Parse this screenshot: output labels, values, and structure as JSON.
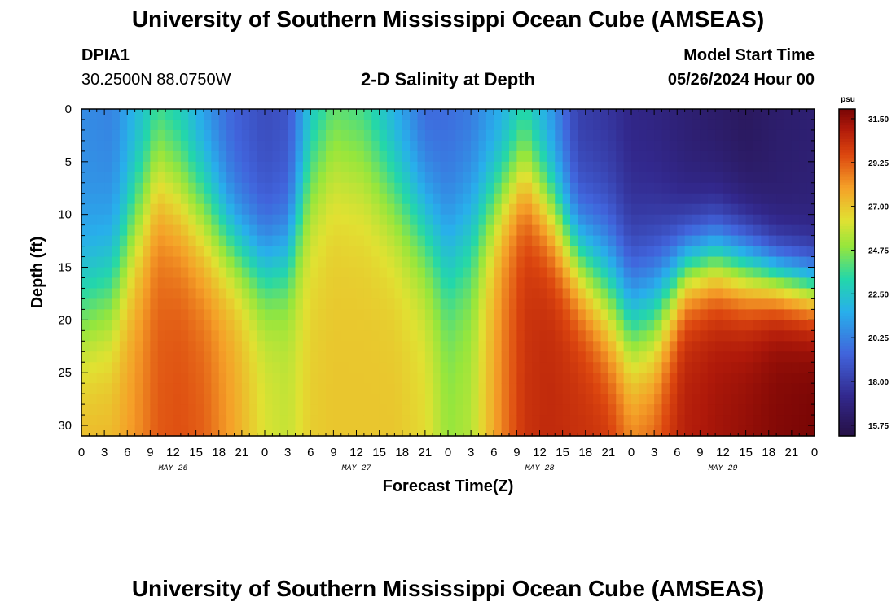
{
  "chart_data": {
    "type": "heatmap",
    "title": "University of Southern Mississippi Ocean Cube (AMSEAS)",
    "title_repeat": "University of Southern Mississippi Ocean Cube (AMSEAS)",
    "station": "DPIA1",
    "coords": "30.2500N  88.0750W",
    "subtitle": "2-D Salinity at Depth",
    "model_start_label": "Model Start Time",
    "model_start": "05/26/2024 Hour 00",
    "xlabel": "Forecast Time(Z)",
    "ylabel": "Depth (ft)",
    "x_ticks": [
      "0",
      "3",
      "6",
      "9",
      "12",
      "15",
      "18",
      "21",
      "0",
      "3",
      "6",
      "9",
      "12",
      "15",
      "18",
      "21",
      "0",
      "3",
      "6",
      "9",
      "12",
      "15",
      "18",
      "21",
      "0",
      "3",
      "6",
      "9",
      "12",
      "15",
      "18",
      "21",
      "0"
    ],
    "day_labels": [
      "MAY 26",
      "MAY 27",
      "MAY 28",
      "MAY 29"
    ],
    "y_ticks": [
      "0",
      "5",
      "10",
      "15",
      "20",
      "25",
      "30"
    ],
    "ylim": [
      0,
      31
    ],
    "xlim_hours": [
      0,
      96
    ],
    "colorbar_unit": "psu",
    "colorbar_ticks": [
      "31.50",
      "29.25",
      "27.00",
      "24.75",
      "22.50",
      "20.25",
      "18.00",
      "15.75"
    ],
    "colorbar_range": [
      15.2,
      32.0
    ],
    "profiles": [
      {
        "hour": 0,
        "top": 20.5,
        "depth": 19,
        "bottom": 27.5,
        "width": 4
      },
      {
        "hour": 4,
        "top": 20.2,
        "depth": 17,
        "bottom": 27.5,
        "width": 4
      },
      {
        "hour": 7,
        "top": 21.5,
        "depth": 11,
        "bottom": 28.2,
        "width": 4
      },
      {
        "hour": 10,
        "top": 22.5,
        "depth": 6,
        "bottom": 29.3,
        "width": 4
      },
      {
        "hour": 13,
        "top": 22.0,
        "depth": 8,
        "bottom": 29.5,
        "width": 4
      },
      {
        "hour": 16,
        "top": 20.5,
        "depth": 10,
        "bottom": 29.2,
        "width": 4
      },
      {
        "hour": 20,
        "top": 19.2,
        "depth": 13,
        "bottom": 27.8,
        "width": 3
      },
      {
        "hour": 24,
        "top": 18.5,
        "depth": 15,
        "bottom": 26.2,
        "width": 3
      },
      {
        "hour": 27,
        "top": 18.8,
        "depth": 14,
        "bottom": 25.8,
        "width": 3
      },
      {
        "hour": 30,
        "top": 21.8,
        "depth": 7,
        "bottom": 26.8,
        "width": 4
      },
      {
        "hour": 33,
        "top": 23.2,
        "depth": 4,
        "bottom": 27.0,
        "width": 4
      },
      {
        "hour": 37,
        "top": 22.8,
        "depth": 5,
        "bottom": 27.0,
        "width": 4
      },
      {
        "hour": 41,
        "top": 21.0,
        "depth": 8,
        "bottom": 27.0,
        "width": 4
      },
      {
        "hour": 45,
        "top": 19.2,
        "depth": 11,
        "bottom": 26.5,
        "width": 4
      },
      {
        "hour": 48,
        "top": 19.5,
        "depth": 14,
        "bottom": 25.0,
        "width": 4
      },
      {
        "hour": 51,
        "top": 19.8,
        "depth": 12,
        "bottom": 25.5,
        "width": 4
      },
      {
        "hour": 55,
        "top": 21.2,
        "depth": 8,
        "bottom": 28.5,
        "width": 3
      },
      {
        "hour": 58,
        "top": 22.5,
        "depth": 6,
        "bottom": 30.2,
        "width": 3
      },
      {
        "hour": 61,
        "top": 21.0,
        "depth": 9,
        "bottom": 30.5,
        "width": 3
      },
      {
        "hour": 65,
        "top": 18.0,
        "depth": 14,
        "bottom": 30.3,
        "width": 3
      },
      {
        "hour": 69,
        "top": 17.5,
        "depth": 17,
        "bottom": 30.3,
        "width": 4
      },
      {
        "hour": 72,
        "top": 17.0,
        "depth": 20,
        "bottom": 29.0,
        "width": 4
      },
      {
        "hour": 75,
        "top": 16.8,
        "depth": 19,
        "bottom": 29.5,
        "width": 4
      },
      {
        "hour": 79,
        "top": 16.5,
        "depth": 15,
        "bottom": 30.8,
        "width": 2.5
      },
      {
        "hour": 83,
        "top": 16.2,
        "depth": 14,
        "bottom": 31.2,
        "width": 2.5
      },
      {
        "hour": 87,
        "top": 15.9,
        "depth": 15,
        "bottom": 31.5,
        "width": 2.5
      },
      {
        "hour": 91,
        "top": 16.3,
        "depth": 16,
        "bottom": 31.8,
        "width": 2
      },
      {
        "hour": 96,
        "top": 16.5,
        "depth": 17,
        "bottom": 32.0,
        "width": 2
      }
    ]
  }
}
